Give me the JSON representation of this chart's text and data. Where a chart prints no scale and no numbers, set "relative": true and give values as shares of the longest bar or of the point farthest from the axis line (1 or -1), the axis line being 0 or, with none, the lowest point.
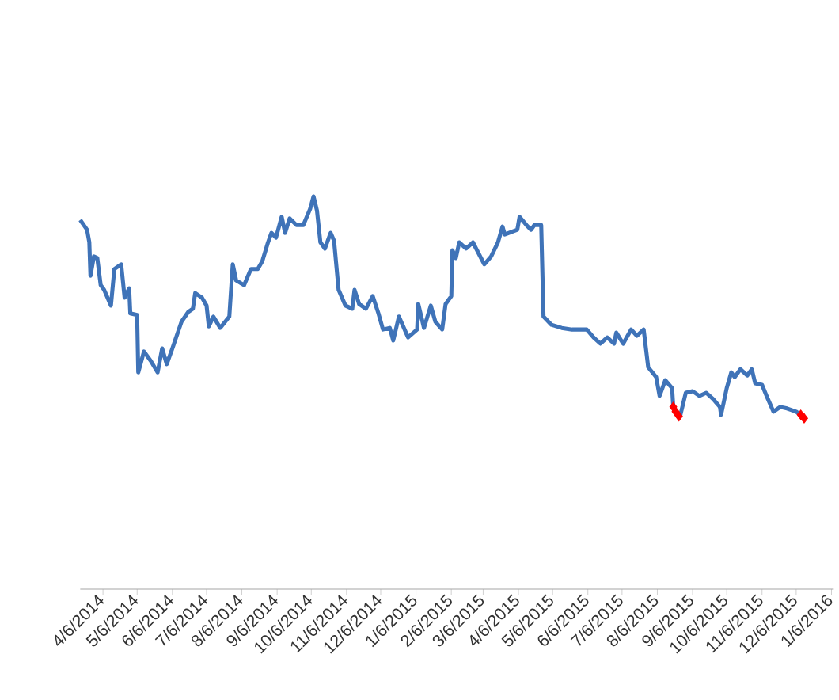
{
  "chart_data": {
    "type": "line",
    "relative": true,
    "xlim": [
      "2014-03-17",
      "2016-01-08"
    ],
    "xticks": [
      {
        "value": "2014-04-06",
        "label": "4/6/2014"
      },
      {
        "value": "2014-05-06",
        "label": "5/6/2014"
      },
      {
        "value": "2014-06-06",
        "label": "6/6/2014"
      },
      {
        "value": "2014-07-06",
        "label": "7/6/2014"
      },
      {
        "value": "2014-08-06",
        "label": "8/6/2014"
      },
      {
        "value": "2014-09-06",
        "label": "9/6/2014"
      },
      {
        "value": "2014-10-06",
        "label": "10/6/2014"
      },
      {
        "value": "2014-11-06",
        "label": "11/6/2014"
      },
      {
        "value": "2014-12-06",
        "label": "12/6/2014"
      },
      {
        "value": "2015-01-06",
        "label": "1/6/2015"
      },
      {
        "value": "2015-02-06",
        "label": "2/6/2015"
      },
      {
        "value": "2015-03-06",
        "label": "3/6/2015"
      },
      {
        "value": "2015-04-06",
        "label": "4/6/2015"
      },
      {
        "value": "2015-05-06",
        "label": "5/6/2015"
      },
      {
        "value": "2015-06-06",
        "label": "6/6/2015"
      },
      {
        "value": "2015-07-06",
        "label": "7/6/2015"
      },
      {
        "value": "2015-08-06",
        "label": "8/6/2015"
      },
      {
        "value": "2015-09-06",
        "label": "9/6/2015"
      },
      {
        "value": "2015-10-06",
        "label": "10/6/2015"
      },
      {
        "value": "2015-11-06",
        "label": "11/6/2015"
      },
      {
        "value": "2015-12-06",
        "label": "12/6/2015"
      },
      {
        "value": "2016-01-06",
        "label": "1/6/2016"
      }
    ],
    "series": [
      {
        "color": "#3f73b8",
        "marker": "none",
        "x": [
          "2014-03-17",
          "2014-03-23",
          "2014-03-25",
          "2014-03-26",
          "2014-03-29",
          "2014-04-01",
          "2014-04-04",
          "2014-04-07",
          "2014-04-13",
          "2014-04-16",
          "2014-04-22",
          "2014-04-25",
          "2014-04-29",
          "2014-04-30",
          "2014-05-06",
          "2014-05-07",
          "2014-05-12",
          "2014-05-18",
          "2014-05-24",
          "2014-05-28",
          "2014-06-01",
          "2014-06-06",
          "2014-06-14",
          "2014-06-20",
          "2014-06-24",
          "2014-06-26",
          "2014-07-02",
          "2014-07-06",
          "2014-07-08",
          "2014-07-12",
          "2014-07-18",
          "2014-07-26",
          "2014-07-29",
          "2014-08-01",
          "2014-08-08",
          "2014-08-14",
          "2014-08-20",
          "2014-08-24",
          "2014-08-29",
          "2014-09-01",
          "2014-09-05",
          "2014-09-10",
          "2014-09-13",
          "2014-09-17",
          "2014-09-23",
          "2014-09-29",
          "2014-10-05",
          "2014-10-08",
          "2014-10-11",
          "2014-10-14",
          "2014-10-18",
          "2014-10-23",
          "2014-10-26",
          "2014-10-30",
          "2014-11-05",
          "2014-11-11",
          "2014-11-13",
          "2014-11-17",
          "2014-11-23",
          "2014-11-29",
          "2014-12-04",
          "2014-12-08",
          "2014-12-14",
          "2014-12-17",
          "2014-12-22",
          "2014-12-30",
          "2015-01-07",
          "2015-01-08",
          "2015-01-13",
          "2015-01-19",
          "2015-01-23",
          "2015-01-29",
          "2015-02-01",
          "2015-02-06",
          "2015-02-07",
          "2015-02-10",
          "2015-02-13",
          "2015-02-19",
          "2015-02-25",
          "2015-03-02",
          "2015-03-07",
          "2015-03-13",
          "2015-03-19",
          "2015-03-23",
          "2015-03-25",
          "2015-04-05",
          "2015-04-07",
          "2015-04-13",
          "2015-04-17",
          "2015-04-20",
          "2015-04-26",
          "2015-04-28",
          "2015-05-05",
          "2015-05-14",
          "2015-05-23",
          "2015-06-05",
          "2015-06-11",
          "2015-06-17",
          "2015-06-23",
          "2015-06-29",
          "2015-07-01",
          "2015-07-07",
          "2015-07-14",
          "2015-07-19",
          "2015-07-25",
          "2015-07-29",
          "2015-08-05",
          "2015-08-08",
          "2015-08-13",
          "2015-08-19",
          "2015-08-20",
          "2015-08-26",
          "2015-08-31",
          "2015-09-06",
          "2015-09-12",
          "2015-09-18",
          "2015-09-24",
          "2015-09-30",
          "2015-10-01",
          "2015-10-06",
          "2015-10-10",
          "2015-10-13",
          "2015-10-18",
          "2015-10-24",
          "2015-10-28",
          "2015-10-31",
          "2015-11-06",
          "2015-11-10",
          "2015-11-16",
          "2015-11-22",
          "2015-11-28",
          "2015-12-06",
          "2015-12-11",
          "2015-12-14"
        ],
        "values": [
          0.94,
          0.915,
          0.883,
          0.798,
          0.847,
          0.843,
          0.774,
          0.762,
          0.722,
          0.815,
          0.827,
          0.742,
          0.766,
          0.702,
          0.698,
          0.552,
          0.605,
          0.581,
          0.552,
          0.613,
          0.573,
          0.613,
          0.681,
          0.706,
          0.714,
          0.754,
          0.742,
          0.722,
          0.669,
          0.694,
          0.665,
          0.694,
          0.827,
          0.786,
          0.774,
          0.815,
          0.815,
          0.835,
          0.883,
          0.907,
          0.895,
          0.948,
          0.907,
          0.944,
          0.927,
          0.927,
          0.968,
          1,
          0.964,
          0.883,
          0.867,
          0.907,
          0.887,
          0.762,
          0.722,
          0.714,
          0.762,
          0.726,
          0.714,
          0.746,
          0.702,
          0.661,
          0.665,
          0.633,
          0.694,
          0.641,
          0.661,
          0.726,
          0.665,
          0.722,
          0.681,
          0.661,
          0.726,
          0.746,
          0.863,
          0.843,
          0.883,
          0.867,
          0.883,
          0.855,
          0.827,
          0.847,
          0.883,
          0.923,
          0.903,
          0.915,
          0.948,
          0.927,
          0.915,
          0.927,
          0.927,
          0.694,
          0.673,
          0.665,
          0.661,
          0.661,
          0.641,
          0.625,
          0.641,
          0.625,
          0.653,
          0.625,
          0.661,
          0.645,
          0.661,
          0.565,
          0.54,
          0.492,
          0.532,
          0.512,
          0.464,
          0.44,
          0.5,
          0.504,
          0.492,
          0.5,
          0.484,
          0.464,
          0.444,
          0.512,
          0.552,
          0.54,
          0.56,
          0.544,
          0.56,
          0.524,
          0.52,
          0.492,
          0.452,
          0.464,
          0.46,
          0.452,
          0.44,
          0.431
        ]
      },
      {
        "type": "scatter",
        "color": "#ff0000",
        "marker": "diamond",
        "x": [
          "2015-08-20",
          "2015-08-22",
          "2015-08-25",
          "2015-12-10",
          "2015-12-13"
        ],
        "values": [
          0.464,
          0.452,
          0.44,
          0.444,
          0.435
        ]
      }
    ]
  }
}
